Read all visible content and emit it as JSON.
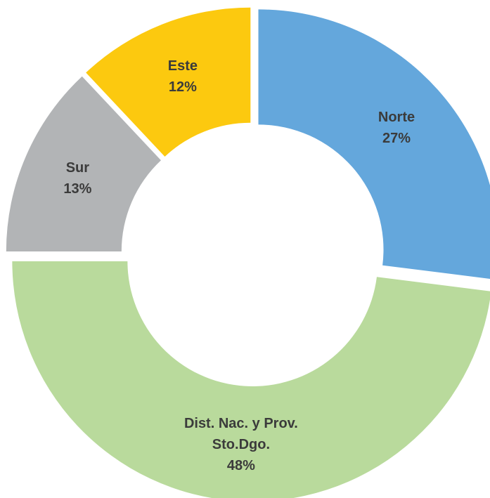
{
  "chart_data": {
    "type": "donut",
    "categories": [
      "Norte",
      "Dist. Nac. y Prov. Sto.Dgo.",
      "Sur",
      "Este"
    ],
    "values": [
      27,
      48,
      13,
      12
    ],
    "value_labels": [
      "27%",
      "48%",
      "13%",
      "12%"
    ],
    "colors": [
      "#64a7dc",
      "#b9da9c",
      "#b2b4b6",
      "#fcc90f"
    ]
  }
}
